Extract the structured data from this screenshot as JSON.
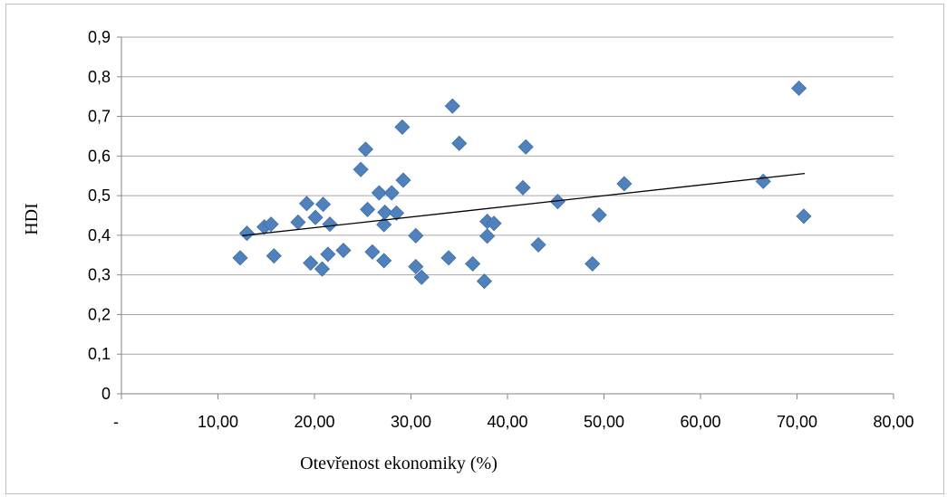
{
  "chart_data": {
    "type": "scatter",
    "xlabel": "Otevřenost ekonomiky (%)",
    "ylabel": "HDI",
    "xlim": [
      0,
      80
    ],
    "ylim": [
      0,
      0.9
    ],
    "x_tick_labels": [
      "-",
      "10,00",
      "20,00",
      "30,00",
      "40,00",
      "50,00",
      "60,00",
      "70,00",
      "80,00"
    ],
    "y_tick_labels": [
      "0",
      "0,1",
      "0,2",
      "0,3",
      "0,4",
      "0,5",
      "0,6",
      "0,7",
      "0,8",
      "0,9"
    ],
    "grid": "horizontal",
    "marker": "diamond",
    "marker_color": "#4F81BD",
    "trendline": {
      "type": "linear",
      "x": [
        12.5,
        70.8
      ],
      "y": [
        0.399,
        0.556
      ],
      "color": "#000000"
    },
    "series": [
      {
        "points": [
          [
            12.3,
            0.343
          ],
          [
            13.0,
            0.405
          ],
          [
            14.8,
            0.421
          ],
          [
            15.5,
            0.428
          ],
          [
            15.8,
            0.348
          ],
          [
            18.3,
            0.433
          ],
          [
            19.2,
            0.48
          ],
          [
            19.6,
            0.33
          ],
          [
            20.1,
            0.445
          ],
          [
            20.8,
            0.315
          ],
          [
            20.9,
            0.478
          ],
          [
            21.4,
            0.352
          ],
          [
            21.6,
            0.428
          ],
          [
            23.0,
            0.362
          ],
          [
            24.8,
            0.566
          ],
          [
            25.3,
            0.617
          ],
          [
            25.5,
            0.465
          ],
          [
            26.0,
            0.358
          ],
          [
            26.7,
            0.507
          ],
          [
            27.2,
            0.336
          ],
          [
            27.2,
            0.427
          ],
          [
            27.3,
            0.458
          ],
          [
            28.0,
            0.507
          ],
          [
            28.5,
            0.456
          ],
          [
            29.1,
            0.673
          ],
          [
            29.2,
            0.539
          ],
          [
            30.5,
            0.399
          ],
          [
            30.5,
            0.321
          ],
          [
            31.1,
            0.294
          ],
          [
            33.9,
            0.343
          ],
          [
            34.3,
            0.726
          ],
          [
            35.0,
            0.632
          ],
          [
            36.4,
            0.328
          ],
          [
            37.6,
            0.284
          ],
          [
            37.9,
            0.435
          ],
          [
            37.9,
            0.398
          ],
          [
            38.6,
            0.43
          ],
          [
            41.6,
            0.52
          ],
          [
            41.9,
            0.623
          ],
          [
            43.2,
            0.376
          ],
          [
            45.2,
            0.485
          ],
          [
            48.8,
            0.328
          ],
          [
            49.5,
            0.451
          ],
          [
            52.1,
            0.53
          ],
          [
            66.5,
            0.536
          ],
          [
            70.2,
            0.771
          ],
          [
            70.7,
            0.448
          ]
        ]
      }
    ]
  }
}
